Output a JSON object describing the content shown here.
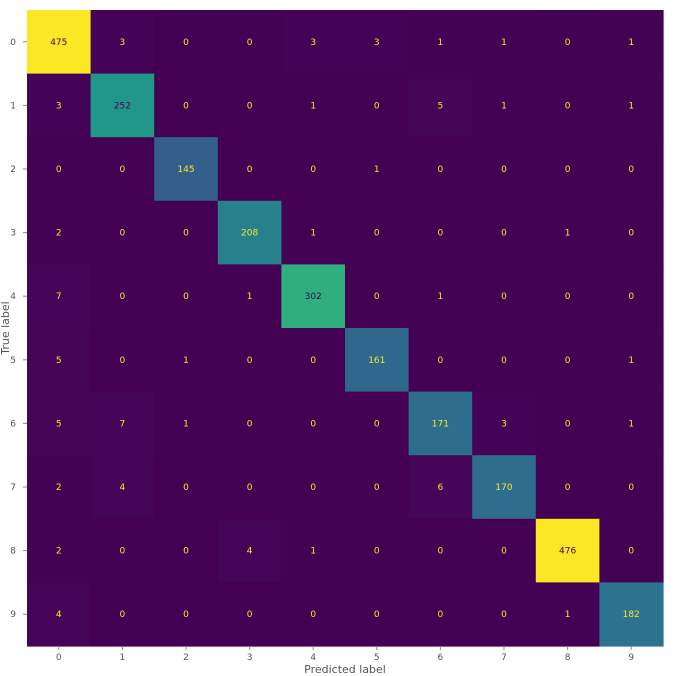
{
  "chart_data": {
    "type": "heatmap",
    "title": "",
    "xlabel": "Predicted label",
    "ylabel": "True label",
    "x_categories": [
      "0",
      "1",
      "2",
      "3",
      "4",
      "5",
      "6",
      "7",
      "8",
      "9"
    ],
    "y_categories": [
      "0",
      "1",
      "2",
      "3",
      "4",
      "5",
      "6",
      "7",
      "8",
      "9"
    ],
    "colormap": "viridis",
    "grid": false,
    "values": [
      [
        475,
        3,
        0,
        0,
        3,
        3,
        1,
        1,
        0,
        1
      ],
      [
        3,
        252,
        0,
        0,
        1,
        0,
        5,
        1,
        0,
        1
      ],
      [
        0,
        0,
        145,
        0,
        0,
        1,
        0,
        0,
        0,
        0
      ],
      [
        2,
        0,
        0,
        208,
        1,
        0,
        0,
        0,
        1,
        0
      ],
      [
        7,
        0,
        0,
        1,
        302,
        0,
        1,
        0,
        0,
        0
      ],
      [
        5,
        0,
        1,
        0,
        0,
        161,
        0,
        0,
        0,
        1
      ],
      [
        5,
        7,
        1,
        0,
        0,
        0,
        171,
        3,
        0,
        1
      ],
      [
        2,
        4,
        0,
        0,
        0,
        0,
        6,
        170,
        0,
        0
      ],
      [
        2,
        0,
        0,
        4,
        1,
        0,
        0,
        0,
        476,
        0
      ],
      [
        4,
        0,
        0,
        0,
        0,
        0,
        0,
        0,
        1,
        182
      ]
    ],
    "label_color_low": "#fde725",
    "label_color_high": "#440154"
  }
}
